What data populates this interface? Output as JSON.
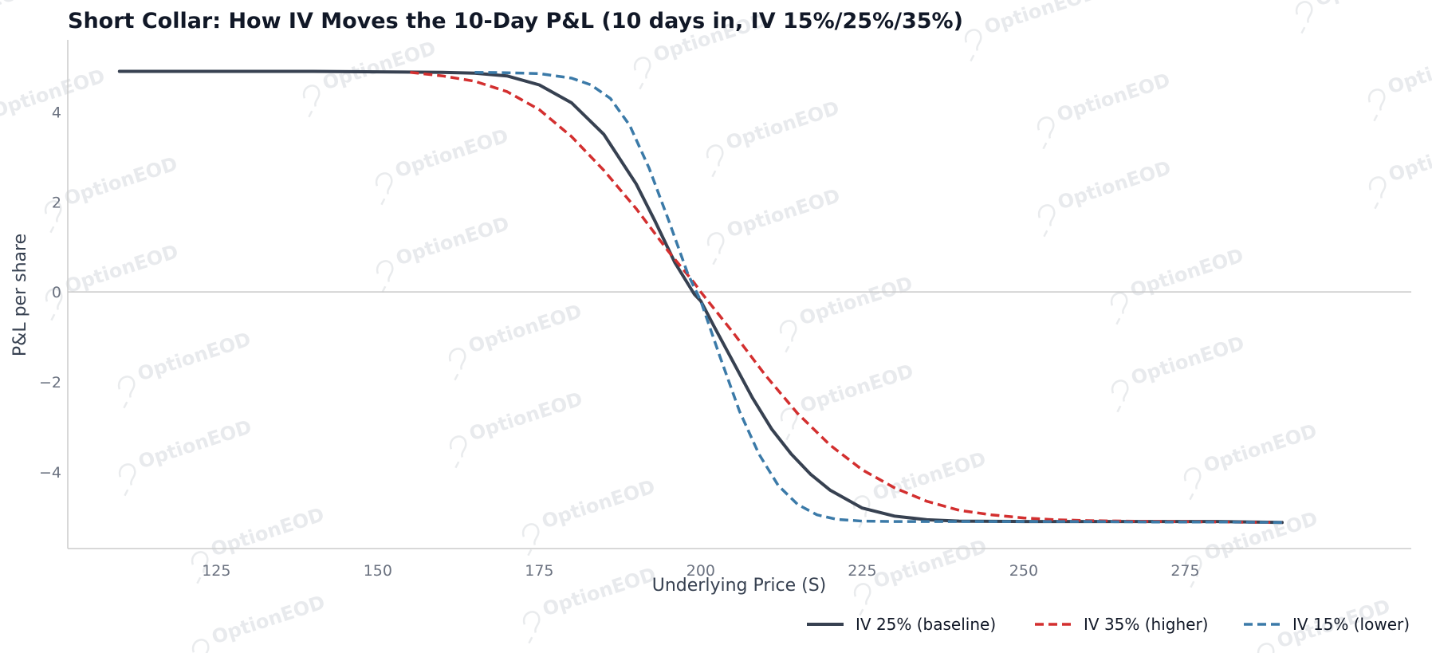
{
  "watermark": "OptionEOD",
  "chart_data": {
    "type": "line",
    "title": "Short Collar: How IV Moves the 10-Day P&L (10 days in, IV 15%/25%/35%)",
    "xlabel": "Underlying Price (S)",
    "ylabel": "P&L per share",
    "xlim": [
      102,
      310
    ],
    "ylim": [
      -5.7,
      5.6
    ],
    "xticks": [
      125,
      150,
      175,
      200,
      225,
      250,
      275
    ],
    "yticks": [
      -4,
      -2,
      0,
      2,
      4
    ],
    "ytick_labels": [
      "−4",
      "−2",
      "0",
      "2",
      "4"
    ],
    "grid": false,
    "zero_line": true,
    "legend_position": "bottom-right",
    "series": [
      {
        "name": "IV 25% (baseline)",
        "color": "#374151",
        "style": "solid",
        "x": [
          110,
          120,
          130,
          140,
          150,
          160,
          165,
          170,
          175,
          180,
          185,
          190,
          193,
          196,
          199,
          200,
          202,
          205,
          208,
          211,
          214,
          217,
          220,
          225,
          230,
          235,
          240,
          250,
          260,
          270,
          280,
          290
        ],
        "y": [
          4.9,
          4.9,
          4.9,
          4.9,
          4.89,
          4.88,
          4.86,
          4.8,
          4.6,
          4.2,
          3.5,
          2.4,
          1.55,
          0.65,
          -0.05,
          -0.2,
          -0.75,
          -1.55,
          -2.35,
          -3.05,
          -3.6,
          -4.05,
          -4.4,
          -4.8,
          -4.98,
          -5.06,
          -5.09,
          -5.1,
          -5.1,
          -5.1,
          -5.1,
          -5.12
        ]
      },
      {
        "name": "IV 35% (higher)",
        "color": "#d32f2f",
        "style": "dashed",
        "x": [
          155,
          160,
          165,
          170,
          175,
          180,
          185,
          190,
          195,
          199,
          200,
          205,
          210,
          215,
          220,
          225,
          230,
          235,
          240,
          245,
          250,
          255,
          260,
          270,
          280,
          290
        ],
        "y": [
          4.88,
          4.8,
          4.68,
          4.45,
          4.05,
          3.45,
          2.7,
          1.85,
          0.9,
          0.2,
          0.0,
          -0.9,
          -1.85,
          -2.7,
          -3.4,
          -3.95,
          -4.35,
          -4.65,
          -4.85,
          -4.95,
          -5.02,
          -5.06,
          -5.08,
          -5.1,
          -5.11,
          -5.12
        ]
      },
      {
        "name": "IV 15% (lower)",
        "color": "#3b7aa8",
        "style": "dashed",
        "x": [
          165,
          170,
          175,
          180,
          183,
          186,
          189,
          192,
          195,
          198,
          200,
          203,
          206,
          209,
          212,
          215,
          218,
          221,
          225,
          230,
          240,
          250,
          260,
          270,
          280,
          290
        ],
        "y": [
          4.88,
          4.87,
          4.85,
          4.75,
          4.6,
          4.3,
          3.7,
          2.75,
          1.6,
          0.4,
          -0.2,
          -1.45,
          -2.65,
          -3.6,
          -4.3,
          -4.72,
          -4.95,
          -5.05,
          -5.09,
          -5.1,
          -5.1,
          -5.1,
          -5.1,
          -5.11,
          -5.11,
          -5.12
        ]
      }
    ]
  }
}
